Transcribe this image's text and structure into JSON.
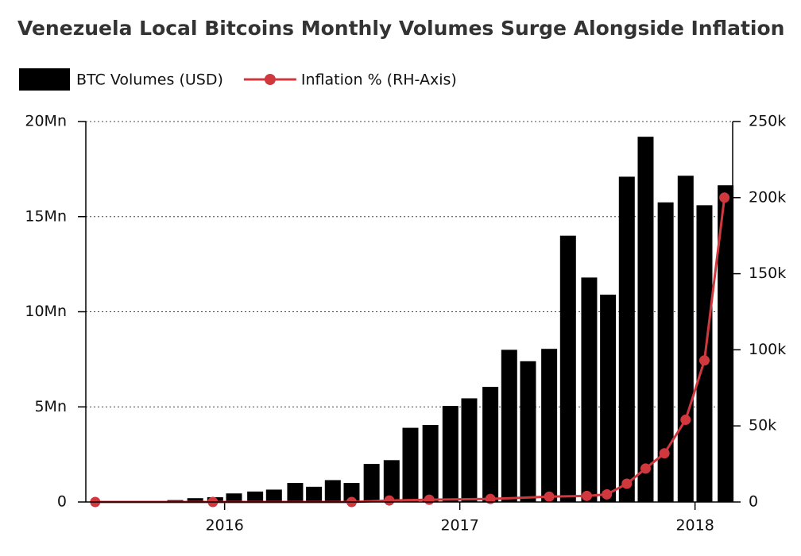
{
  "chart_data": {
    "type": "bar_line",
    "title": "Venezuela Local Bitcoins Monthly Volumes Surge Alongside Inflation",
    "xlim": [
      2015.41,
      2018.16
    ],
    "xticks": [
      2016,
      2017,
      2018
    ],
    "ylim": [
      0,
      20000000
    ],
    "yticks": [
      0,
      {
        "value": 5000000,
        "label": "5Mn"
      },
      {
        "value": 10000000,
        "label": "10Mn"
      },
      {
        "value": 15000000,
        "label": "15Mn"
      },
      {
        "value": 20000000,
        "label": "20Mn"
      }
    ],
    "y2lim": [
      0,
      250000
    ],
    "y2ticks": [
      0,
      {
        "value": 50000,
        "label": "50k"
      },
      {
        "value": 100000,
        "label": "100k"
      },
      {
        "value": 150000,
        "label": "150k"
      },
      {
        "value": 200000,
        "label": "200k"
      },
      {
        "value": 250000,
        "label": "250k"
      }
    ],
    "grid": true,
    "legend": "top-left",
    "series": [
      {
        "name": "BTC Volumes (USD)",
        "type": "bar",
        "color": "#000000",
        "x": [
          2015.79,
          2015.875,
          2015.96,
          2016.04,
          2016.13,
          2016.21,
          2016.3,
          2016.38,
          2016.46,
          2016.54,
          2016.625,
          2016.71,
          2016.79,
          2016.875,
          2016.96,
          2017.04,
          2017.13,
          2017.21,
          2017.29,
          2017.38,
          2017.46,
          2017.55,
          2017.63,
          2017.71,
          2017.79,
          2017.875,
          2017.96,
          2018.04,
          2018.13
        ],
        "values": [
          100000,
          200000,
          250000,
          450000,
          550000,
          650000,
          1000000,
          800000,
          1150000,
          1000000,
          2000000,
          2200000,
          3900000,
          4050000,
          5050000,
          5450000,
          6050000,
          8000000,
          7400000,
          8050000,
          14000000,
          11800000,
          10900000,
          17100000,
          19200000,
          15750000,
          17150000,
          15600000,
          16650000
        ]
      },
      {
        "name": "Inflation % (RH-Axis)",
        "type": "line",
        "axis": "y2",
        "color": "#d0383e",
        "x": [
          2015.45,
          2015.95,
          2016.54,
          2016.7,
          2016.87,
          2017.13,
          2017.38,
          2017.54,
          2017.625,
          2017.71,
          2017.79,
          2017.87,
          2017.96,
          2018.04,
          2018.125
        ],
        "values": [
          0,
          0,
          0,
          1000,
          1500,
          2000,
          3500,
          4000,
          5000,
          12000,
          22000,
          32000,
          54000,
          93000,
          200000
        ]
      }
    ]
  }
}
